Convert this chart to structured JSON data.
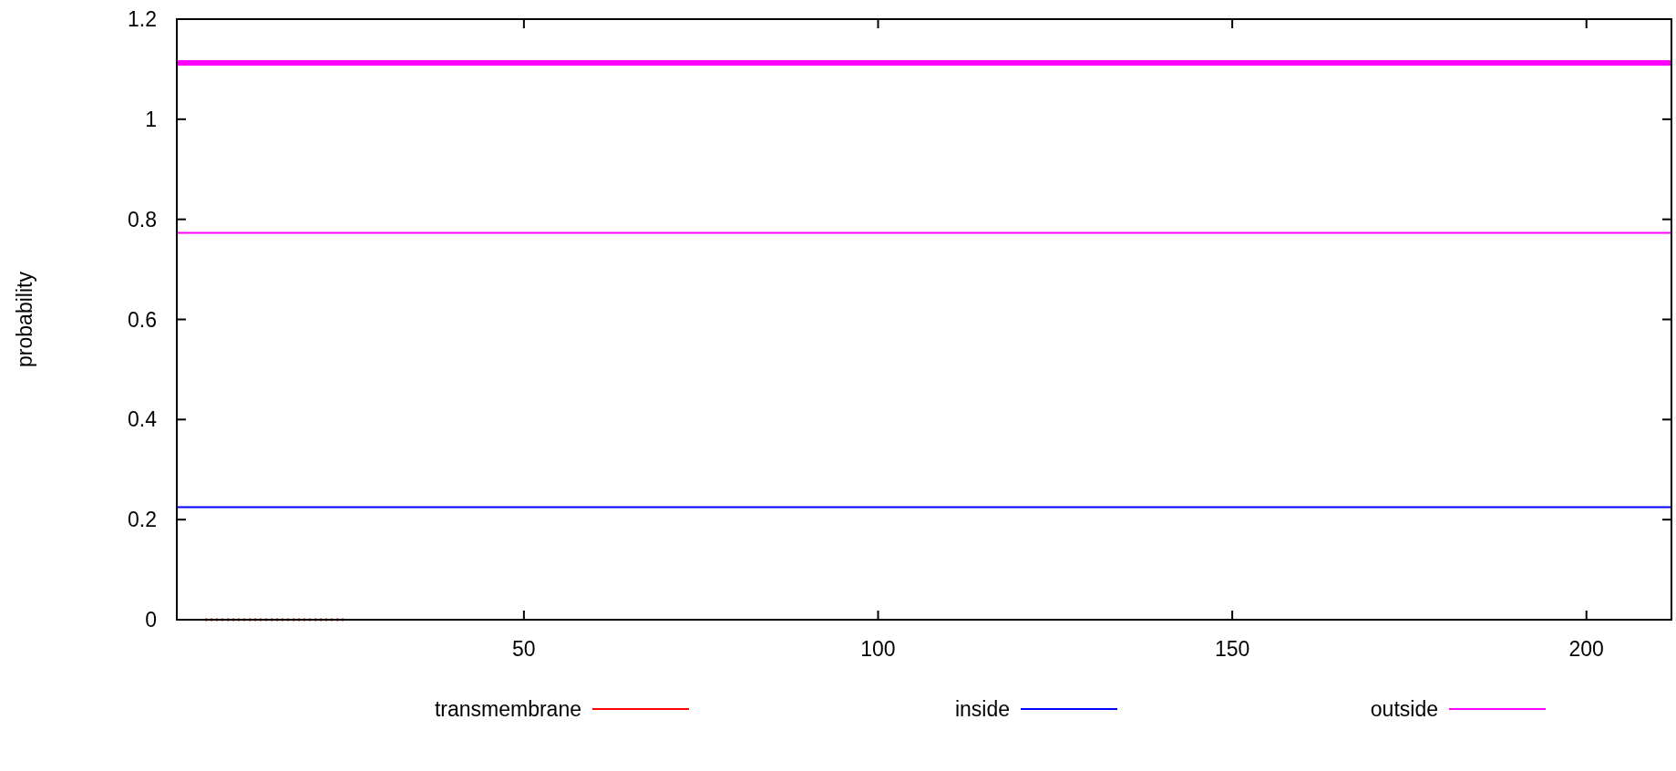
{
  "chart_data": {
    "type": "line",
    "ylabel": "probability",
    "xlim": [
      1,
      212
    ],
    "ylim": [
      0,
      1.2
    ],
    "xticks": [
      50,
      100,
      150,
      200
    ],
    "yticks": [
      0,
      0.2,
      0.4,
      0.6,
      0.8,
      1,
      1.2
    ],
    "grid": false,
    "legend": "bottom",
    "marker": "none",
    "series": [
      {
        "name": "transmembrane",
        "color": "#ff0000",
        "x": [
          5,
          25
        ],
        "values": [
          0,
          0
        ],
        "line_style": "dotted"
      },
      {
        "name": "inside",
        "color": "#0000ff",
        "x": [
          1,
          212
        ],
        "values": [
          0.225,
          0.225
        ]
      },
      {
        "name": "outside",
        "color": "#ff00ff",
        "x": [
          1,
          212
        ],
        "values": [
          0.773,
          0.773
        ]
      }
    ],
    "bands": [
      {
        "axis": "y",
        "from": 1.107,
        "to": 1.118,
        "color": "#ff00ff"
      }
    ]
  }
}
